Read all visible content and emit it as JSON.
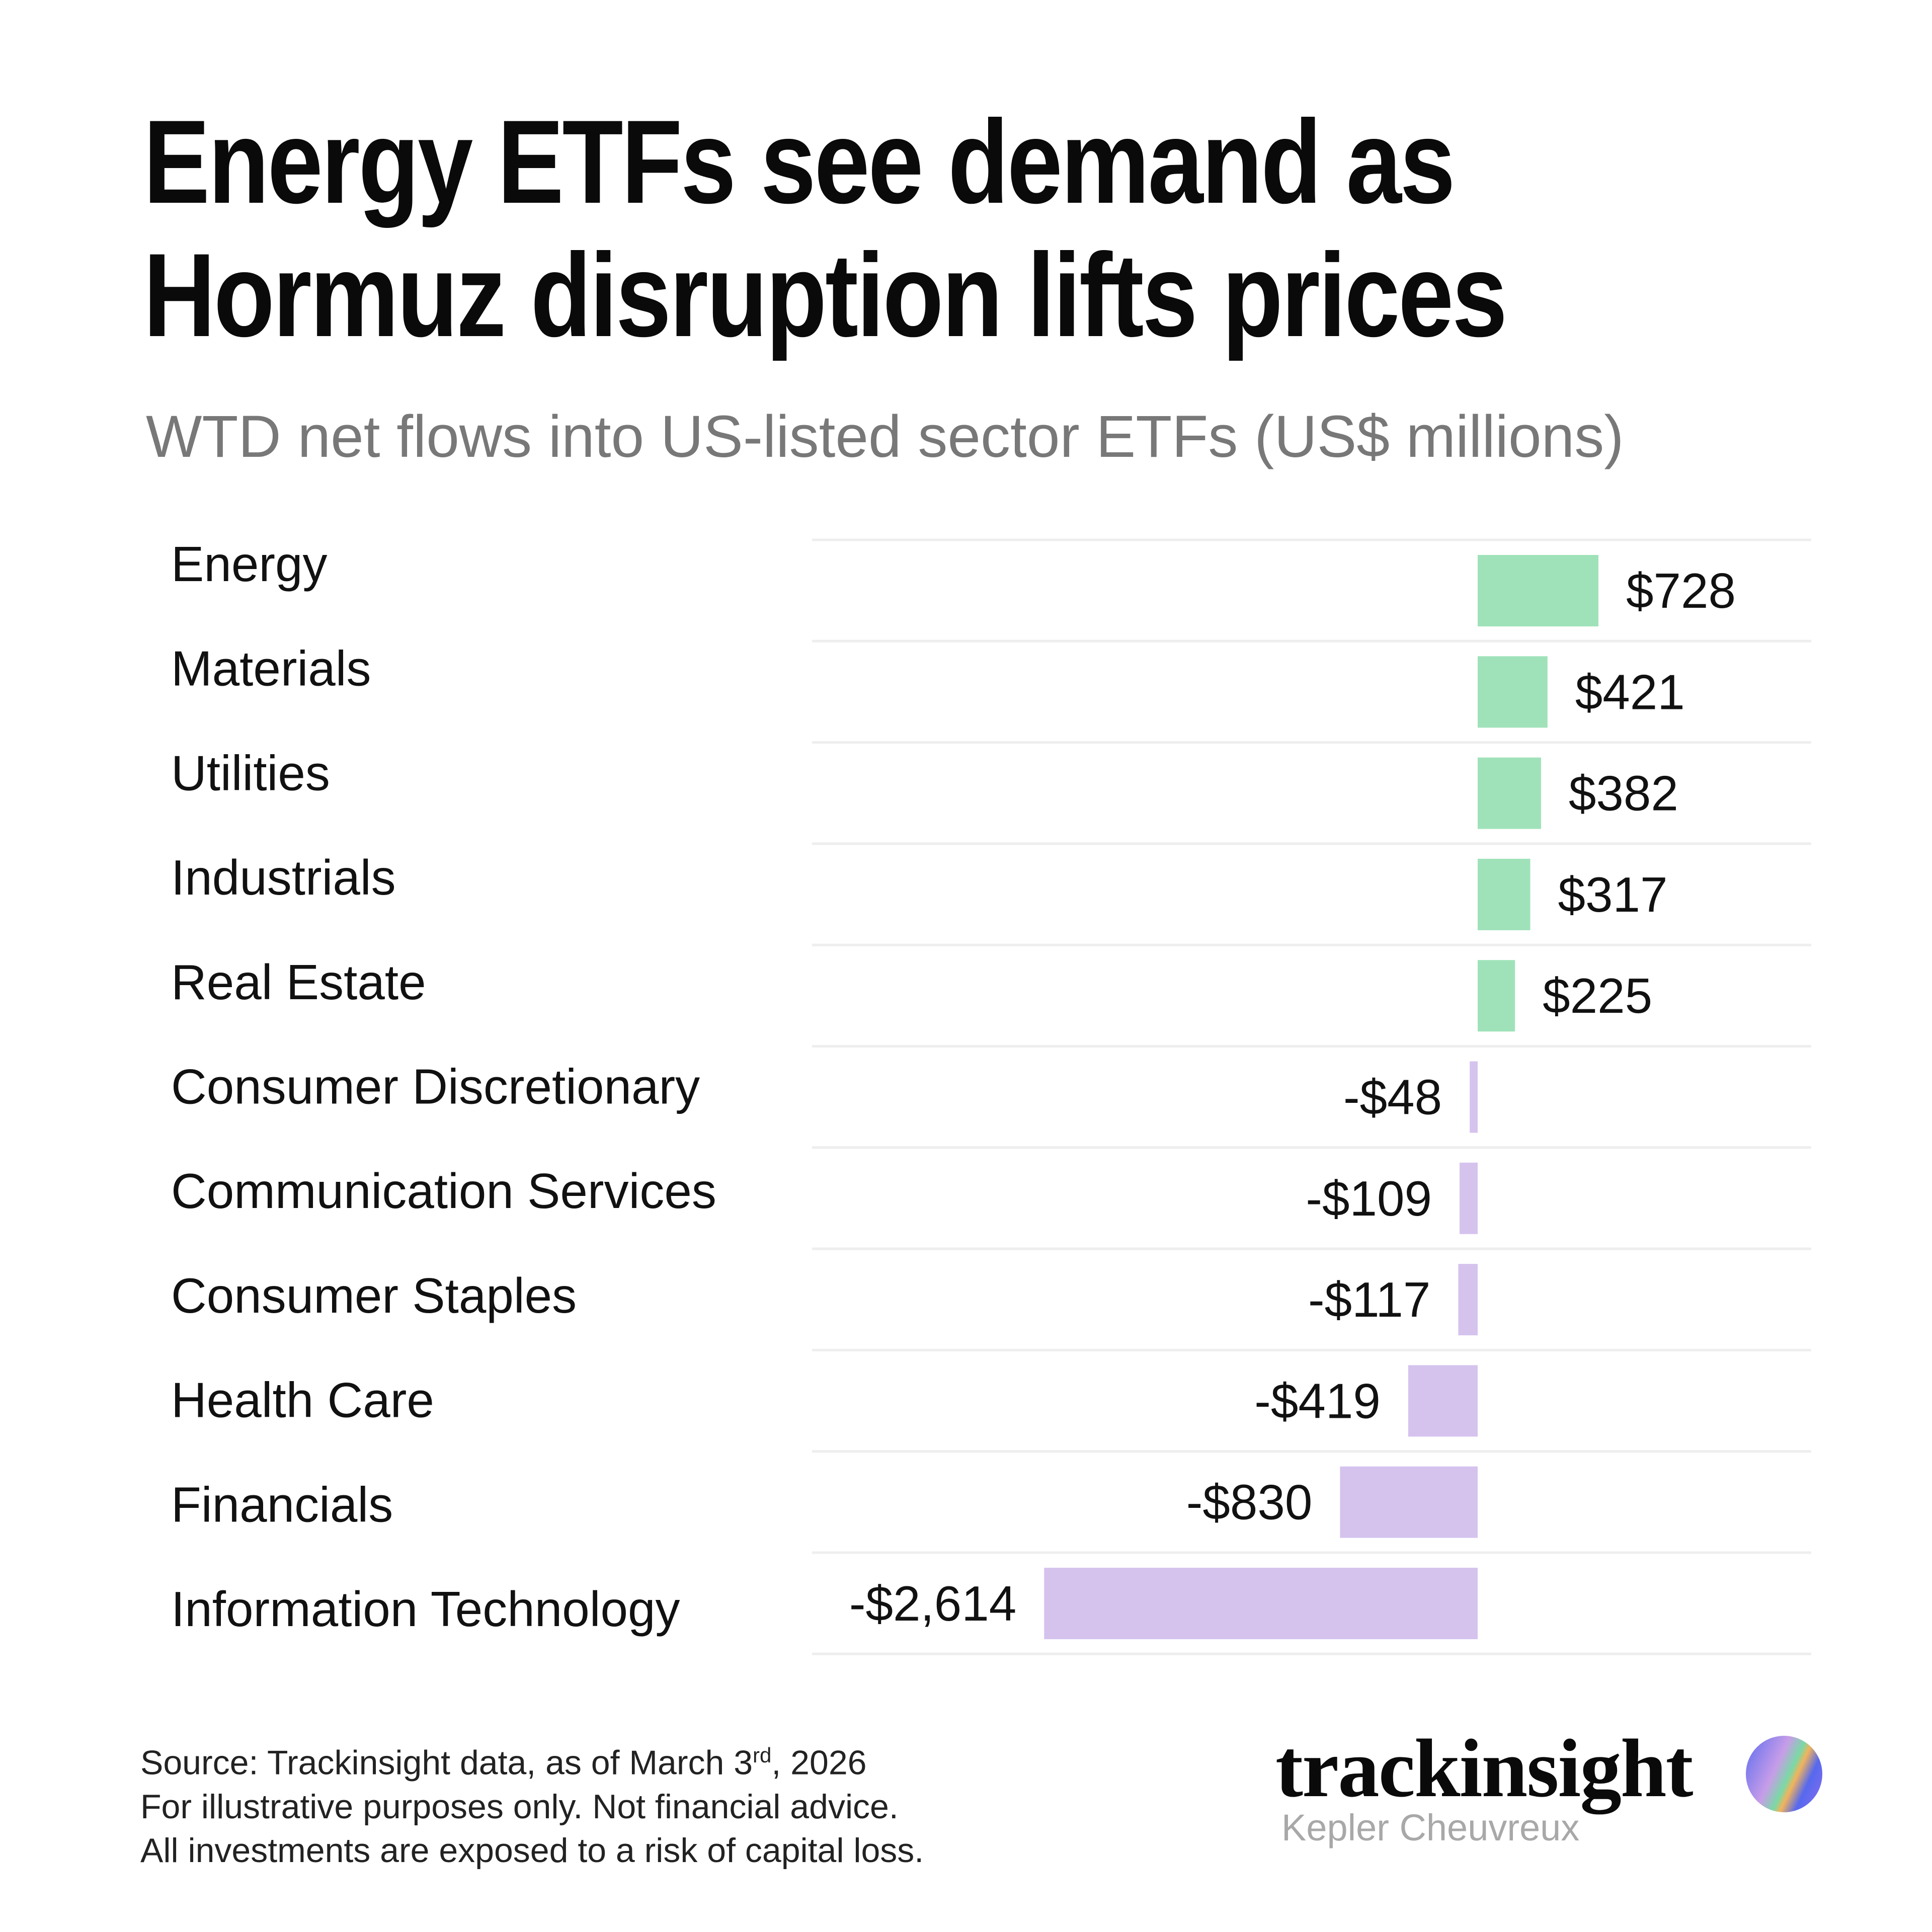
{
  "title_lines": [
    "Energy ETFs see demand as",
    "Hormuz disruption lifts prices"
  ],
  "subtitle": "WTD net flows into US-listed sector ETFs (US$ millions)",
  "chart_data": {
    "type": "bar",
    "orientation": "horizontal",
    "categories": [
      "Energy",
      "Materials",
      "Utilities",
      "Industrials",
      "Real Estate",
      "Consumer Discretionary",
      "Communication Services",
      "Consumer Staples",
      "Health Care",
      "Financials",
      "Information Technology"
    ],
    "values": [
      728,
      421,
      382,
      317,
      225,
      -48,
      -109,
      -117,
      -419,
      -830,
      -2614
    ],
    "labels": [
      "$728",
      "$421",
      "$382",
      "$317",
      "$225",
      "-$48",
      "-$109",
      "-$117",
      "-$419",
      "-$830",
      "-$2,614"
    ],
    "title": "Energy ETFs see demand as Hormuz disruption lifts prices",
    "subtitle": "WTD net flows into US-listed sector ETFs (US$ millions)",
    "xlabel": "",
    "ylabel": "",
    "grid": "horizontal row separators",
    "colors": {
      "positive": "#9fe2b9",
      "negative": "#d5c3ee",
      "separator": "#eeeeee"
    }
  },
  "footer": {
    "source_prefix": "Source: Trackinsight data, as of March 3",
    "source_sup": "rd",
    "source_suffix": ", 2026",
    "line2": "For illustrative purposes only. Not financial advice.",
    "line3": "All investments are exposed to a risk of capital loss."
  },
  "logo": {
    "name": "trackinsight",
    "sub": "Kepler Cheuvreux"
  }
}
